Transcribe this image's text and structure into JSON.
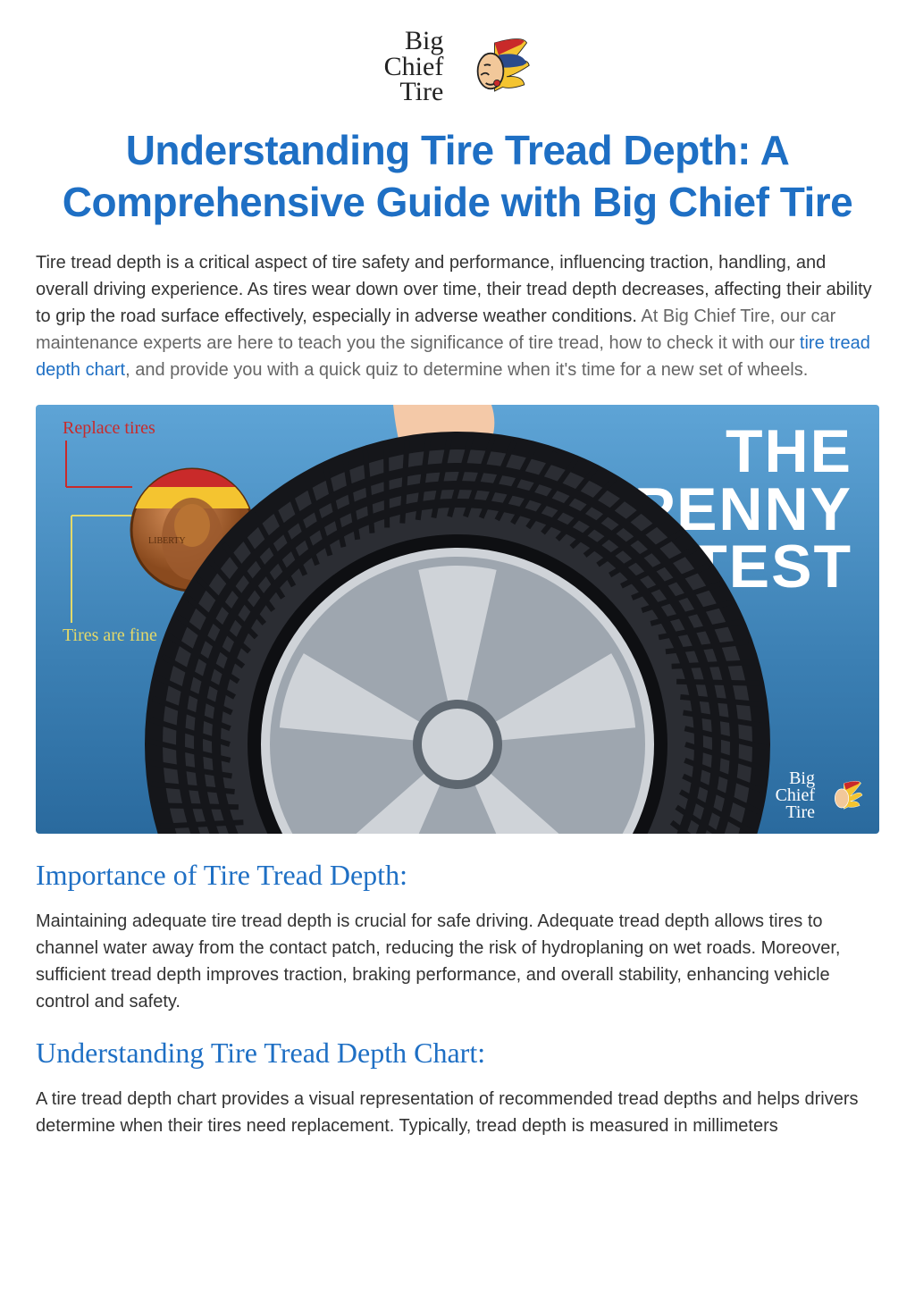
{
  "logo": {
    "text_lines": [
      "Big",
      "Chief",
      "Tire"
    ],
    "colors": {
      "headdress_red": "#c92a2a",
      "headdress_yellow": "#f4c430",
      "headdress_blue": "#2b4a8b",
      "face": "#f2c89a",
      "outline": "#222"
    }
  },
  "page_title": "Understanding Tire Tread Depth: A Comprehensive Guide with Big Chief Tire",
  "intro": {
    "lead": "Tire tread depth is a critical aspect of tire safety and performance, influencing traction, handling, and overall driving experience. As tires wear down over time, their tread depth decreases, affecting their ability to grip the road surface effectively, especially in adverse weather conditions. ",
    "muted_before_link": "At Big Chief Tire, our car maintenance experts are here to teach you the significance of tire tread, how to check it with our ",
    "link_text": "tire tread depth chart",
    "muted_after_link": ", and provide you with a quick quiz to determine when it's time for a new set of wheels."
  },
  "hero": {
    "title_lines": [
      "THE",
      "PENNY",
      "TEST"
    ],
    "legend_replace": "Replace tires",
    "legend_fine": "Tires are fine",
    "mini_logo_lines": [
      "Big",
      "Chief",
      "Tire"
    ],
    "colors": {
      "bg_top": "#5ea4d6",
      "bg_bottom": "#2a6a9e",
      "text": "#ffffff",
      "replace_text": "#c92a2a",
      "fine_text": "#e3d96a",
      "penny": "#b87333",
      "penny_dark": "#8a4a1e",
      "tire_black": "#15161a",
      "tire_gray": "#2b2d33",
      "rim_light": "#cfd3d8",
      "rim_mid": "#9ea6af",
      "rim_dark": "#5e6770",
      "hand_skin": "#f4c9a8",
      "band_red": "#c92a2a",
      "band_yellow": "#f4c430"
    }
  },
  "section1": {
    "heading": "Importance of Tire Tread Depth:",
    "body": "Maintaining adequate tire tread depth is crucial for safe driving. Adequate tread depth allows tires to channel water away from the contact patch, reducing the risk of hydroplaning on wet roads. Moreover, sufficient tread depth improves traction, braking performance, and overall stability, enhancing vehicle control and safety."
  },
  "section2": {
    "heading": "Understanding Tire Tread Depth Chart:",
    "body": "A tire tread depth chart provides a visual representation of recommended tread depths and helps drivers determine when their tires need replacement. Typically, tread depth is measured in millimeters"
  },
  "theme": {
    "accent": "#1e6fc4",
    "body_text": "#333333",
    "muted_text": "#666666",
    "page_bg": "#ffffff",
    "h1_fontsize": 46,
    "h2_fontsize": 32,
    "body_fontsize": 20
  }
}
